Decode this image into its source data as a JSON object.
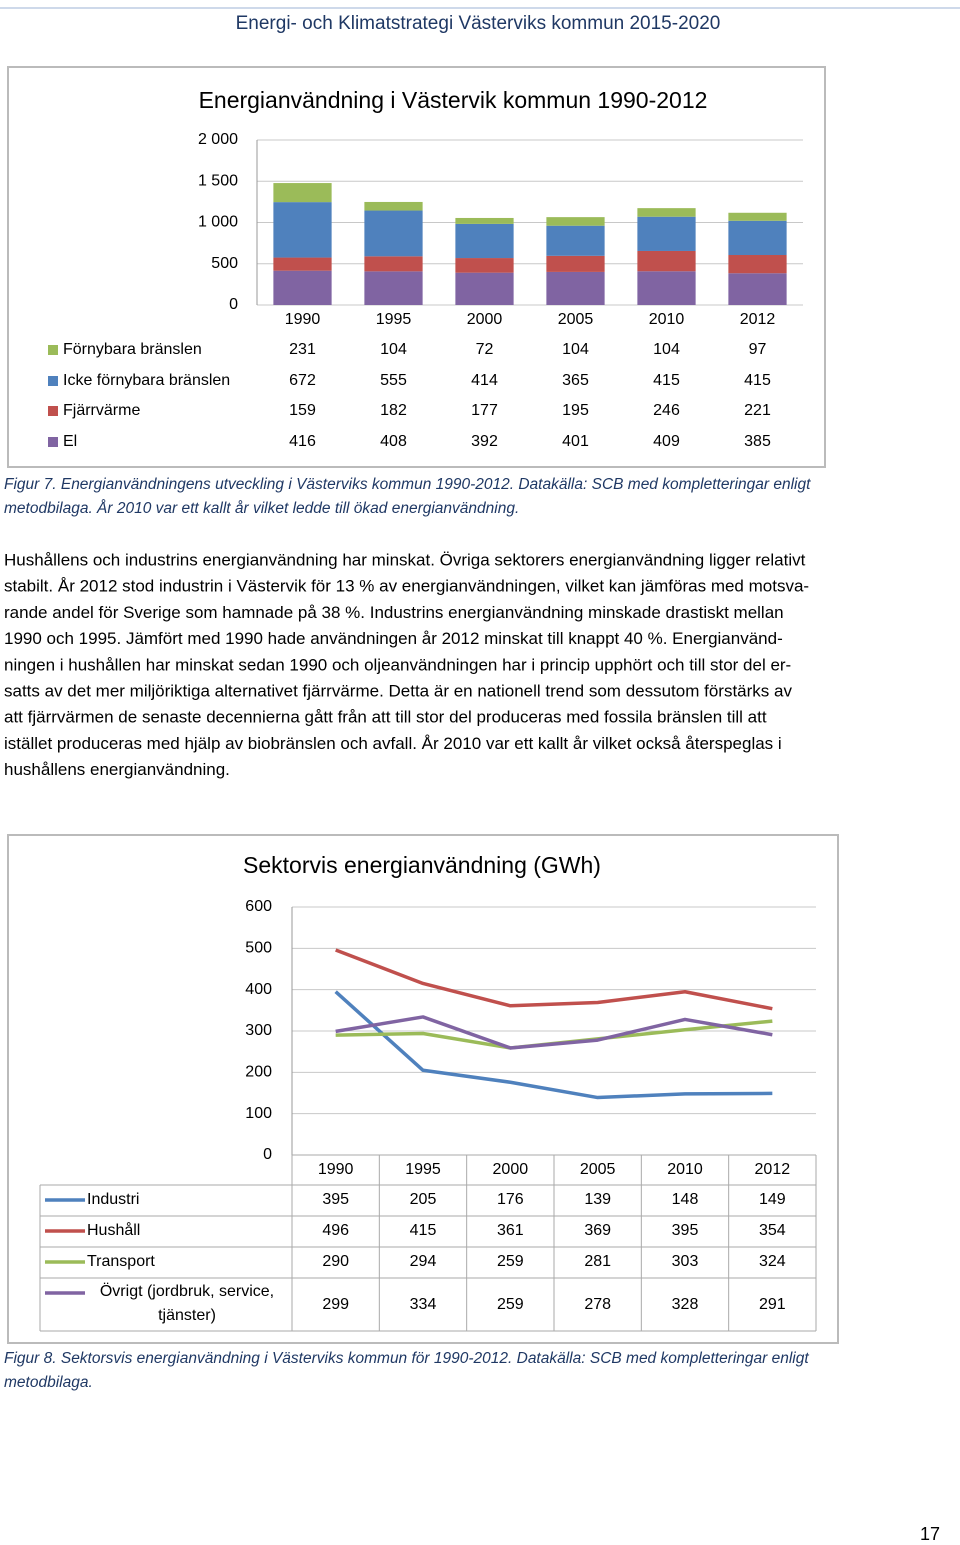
{
  "header": {
    "title": "Energi- och Klimatstrategi Västerviks kommun 2015-2020"
  },
  "chart_data": [
    {
      "type": "bar",
      "stacked": true,
      "title": "Energianvändning i Västervik kommun 1990-2012",
      "categories": [
        "1990",
        "1995",
        "2000",
        "2005",
        "2010",
        "2012"
      ],
      "series": [
        {
          "name": "Förnybara bränslen",
          "color": "#9bbb59",
          "values": [
            231,
            104,
            72,
            104,
            104,
            97
          ]
        },
        {
          "name": "Icke förnybara bränslen",
          "color": "#4f81bd",
          "values": [
            672,
            555,
            414,
            365,
            415,
            415
          ]
        },
        {
          "name": "Fjärrvärme",
          "color": "#c0504d",
          "values": [
            159,
            182,
            177,
            195,
            246,
            221
          ]
        },
        {
          "name": "El",
          "color": "#8064a2",
          "values": [
            416,
            408,
            392,
            401,
            409,
            385
          ]
        }
      ],
      "ylim": [
        0,
        2000
      ],
      "yticks": [
        0,
        500,
        {
          "value": 1000,
          "label": "1 000"
        },
        {
          "value": 1500,
          "label": "1 500"
        },
        {
          "value": 2000,
          "label": "2 000"
        }
      ],
      "grid": true
    },
    {
      "type": "line",
      "title": "Sektorvis energianvändning (GWh)",
      "categories": [
        "1990",
        "1995",
        "2000",
        "2005",
        "2010",
        "2012"
      ],
      "series": [
        {
          "name": "Industri",
          "color": "#4f81bd",
          "values": [
            395,
            205,
            176,
            139,
            148,
            149
          ]
        },
        {
          "name": "Hushåll",
          "color": "#c0504d",
          "values": [
            496,
            415,
            361,
            369,
            395,
            354
          ]
        },
        {
          "name": "Transport",
          "color": "#9bbb59",
          "values": [
            290,
            294,
            259,
            281,
            303,
            324
          ]
        },
        {
          "name": "Övrigt (jordbruk, service, tjänster)",
          "color": "#8064a2",
          "values": [
            299,
            334,
            259,
            278,
            328,
            291
          ]
        }
      ],
      "ylim": [
        0,
        600
      ],
      "yticks": [
        0,
        100,
        200,
        300,
        400,
        500,
        600
      ],
      "grid": true
    }
  ],
  "captions": [
    [
      "Figur 7. Energianvändningens utveckling i Västerviks kommun 1990-2012. Datakälla: SCB med kompletteringar enligt",
      "metodbilaga. År 2010 var ett kallt år vilket ledde till ökad energianvändning."
    ],
    [
      "Figur 8. Sektorsvis energianvändning i Västerviks kommun för 1990-2012. Datakälla: SCB med kompletteringar enligt",
      "metodbilaga."
    ]
  ],
  "body": {
    "lines": [
      "Hushållens och industrins energianvändning har minskat. Övriga sektorers energianvändning ligger relativt",
      "stabilt. År 2012 stod industrin i Västervik för 13 % av energianvändningen, vilket kan jämföras med motsva-",
      "rande andel för Sverige som hamnade på 38 %. Industrins energianvändning minskade drastiskt mellan",
      "1990 och 1995. Jämfört med 1990 hade användningen år 2012 minskat till knappt 40 %.  Energianvänd-",
      "ningen i hushållen har minskat sedan 1990 och oljeanvändningen har i princip upphört och till stor del er-",
      "satts av det mer miljöriktiga alternativet fjärrvärme. Detta är en nationell trend som dessutom förstärks av",
      "att fjärrvärmen de senaste decennierna gått från att till stor del produceras med fossila bränslen till att",
      "istället produceras med hjälp av biobränslen och avfall. År 2010 var ett kallt år vilket också återspeglas i",
      "hushållens energianvändning."
    ]
  },
  "page_number": "17"
}
